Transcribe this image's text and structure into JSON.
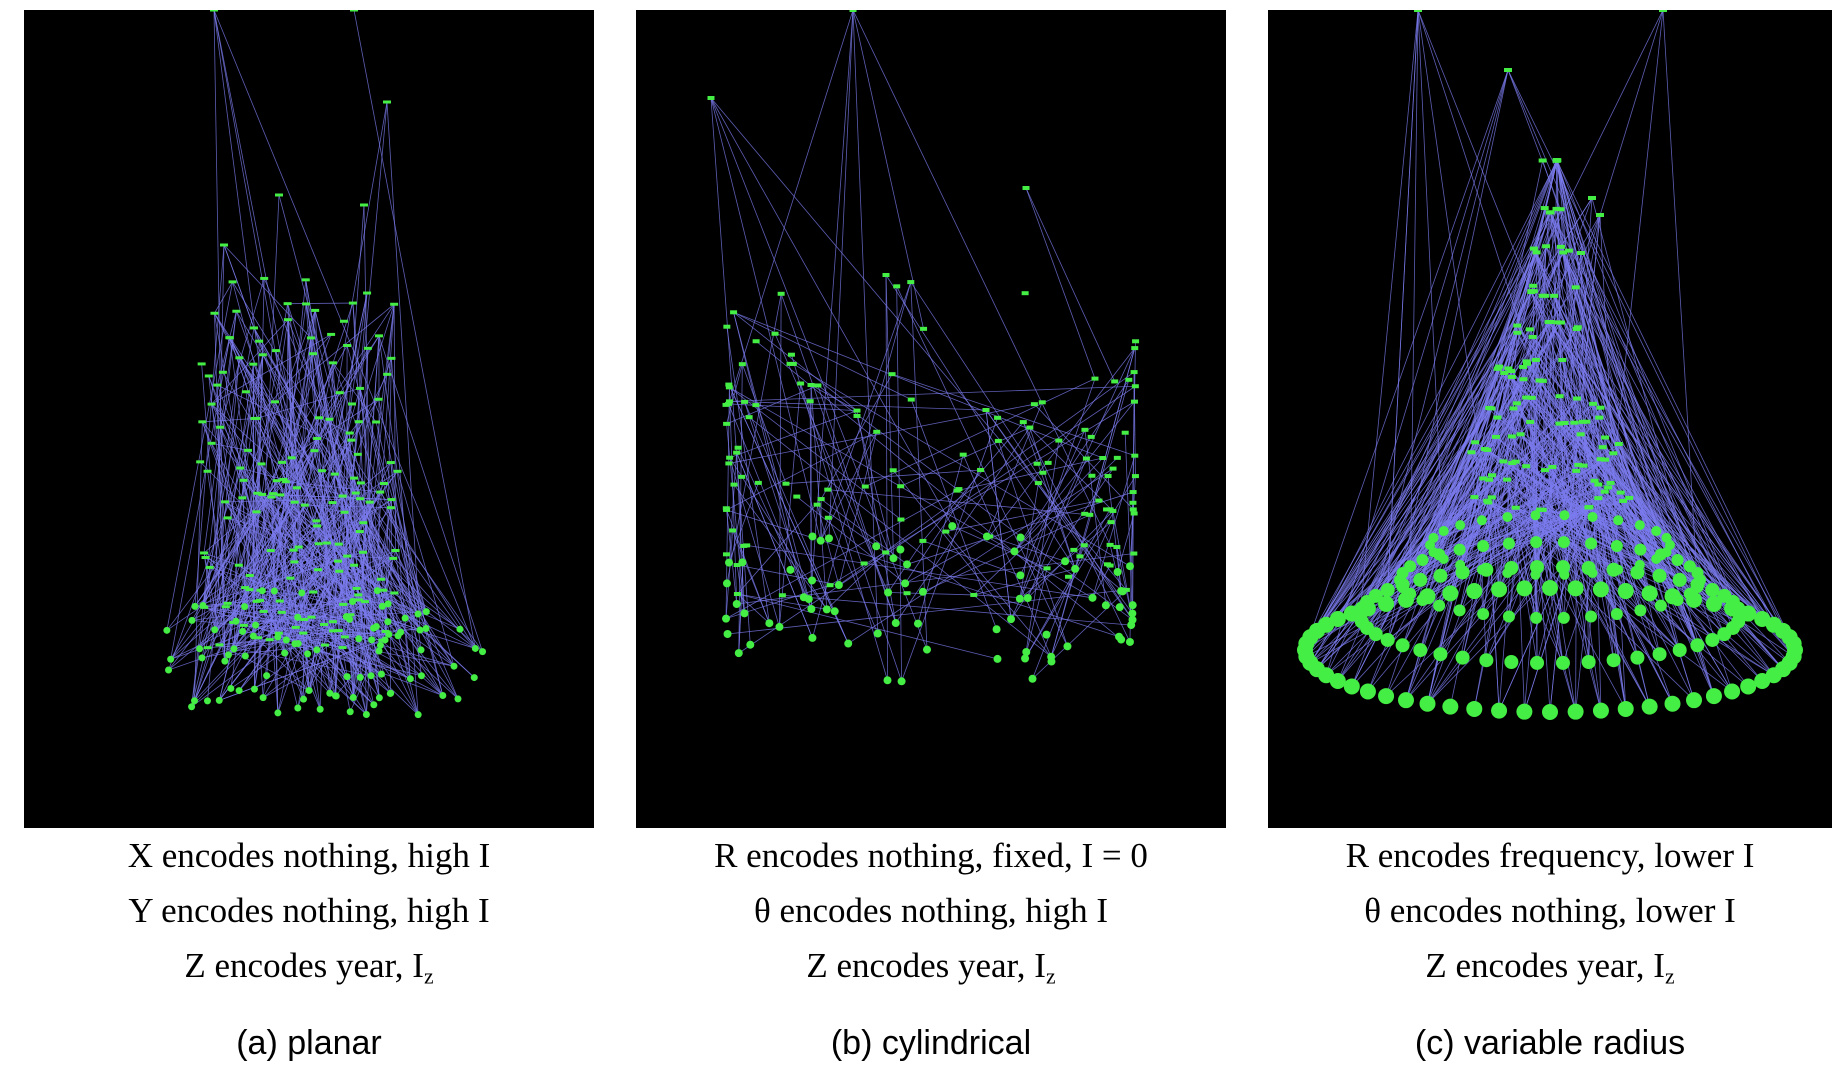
{
  "colors": {
    "panel_bg": "#000000",
    "edge": "#7c7cf0",
    "node": "#44ee44",
    "caption": "#000000"
  },
  "panels": [
    {
      "id": "planar",
      "lines": [
        "X encodes nothing, high I",
        "Y encodes nothing, high I",
        "Z encodes year, I"
      ],
      "subscript": "z",
      "label": "(a) planar"
    },
    {
      "id": "cylindrical",
      "lines": [
        "R encodes nothing, fixed, I = 0",
        "θ encodes nothing, high I",
        "Z encodes year, I"
      ],
      "subscript": "z",
      "label": "(b) cylindrical"
    },
    {
      "id": "variable-radius",
      "lines": [
        "R encodes frequency, lower I",
        "θ encodes nothing, lower I",
        "Z encodes year, I"
      ],
      "subscript": "z",
      "label": "(c) variable radius"
    }
  ]
}
